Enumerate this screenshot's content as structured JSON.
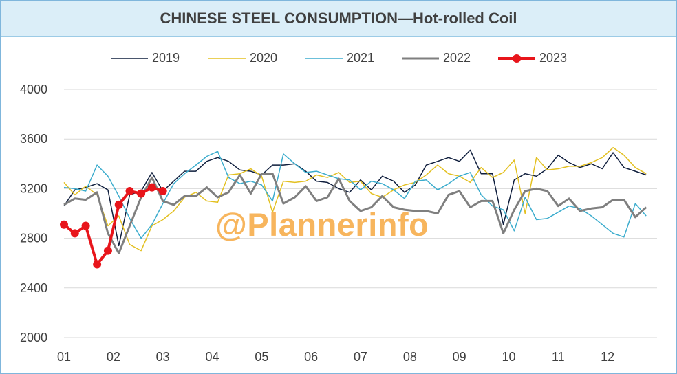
{
  "chart_data": {
    "type": "line",
    "title": "CHINESE STEEL CONSUMPTION—Hot-rolled Coil",
    "xlabel": "",
    "ylabel": "",
    "ylim": [
      2000,
      4000
    ],
    "y_ticks": [
      2000,
      2400,
      2800,
      3200,
      3600,
      4000
    ],
    "x_tick_labels": [
      "01",
      "02",
      "03",
      "04",
      "05",
      "06",
      "07",
      "08",
      "09",
      "10",
      "11",
      "12"
    ],
    "x_range": [
      1,
      13
    ],
    "grid": "horizontal",
    "legend_position": "top",
    "watermark": "@Plannerinfo",
    "series": [
      {
        "name": "2019",
        "color": "#0f1e3d",
        "x": [
          1.0,
          1.22,
          1.44,
          1.67,
          1.89,
          2.11,
          2.33,
          2.56,
          2.78,
          3.0,
          3.22,
          3.44,
          3.67,
          3.89,
          4.11,
          4.33,
          4.56,
          4.78,
          5.0,
          5.22,
          5.44,
          5.67,
          5.89,
          6.11,
          6.33,
          6.56,
          6.78,
          7.0,
          7.22,
          7.44,
          7.67,
          7.89,
          8.11,
          8.33,
          8.56,
          8.78,
          9.0,
          9.22,
          9.44,
          9.67,
          9.89,
          10.11,
          10.33,
          10.56,
          10.78,
          11.0,
          11.22,
          11.44,
          11.67,
          11.89,
          12.11,
          12.33,
          12.56,
          12.78
        ],
        "values": [
          3060,
          3190,
          3210,
          3240,
          3190,
          2740,
          3150,
          3180,
          3330,
          3180,
          3260,
          3340,
          3340,
          3420,
          3450,
          3420,
          3350,
          3340,
          3310,
          3390,
          3390,
          3400,
          3340,
          3260,
          3250,
          3200,
          3170,
          3270,
          3190,
          3300,
          3260,
          3170,
          3230,
          3390,
          3420,
          3450,
          3420,
          3510,
          3320,
          3320,
          2910,
          3270,
          3320,
          3300,
          3360,
          3470,
          3410,
          3370,
          3400,
          3360,
          3490,
          3370,
          3340,
          3310
        ]
      },
      {
        "name": "2020",
        "color": "#e3c021",
        "x": [
          1.0,
          1.22,
          1.44,
          1.67,
          1.89,
          2.11,
          2.33,
          2.56,
          2.78,
          3.0,
          3.22,
          3.44,
          3.67,
          3.89,
          4.11,
          4.33,
          4.56,
          4.78,
          5.0,
          5.22,
          5.44,
          5.67,
          5.89,
          6.11,
          6.33,
          6.56,
          6.78,
          7.0,
          7.22,
          7.44,
          7.67,
          7.89,
          8.11,
          8.33,
          8.56,
          8.78,
          9.0,
          9.22,
          9.44,
          9.67,
          9.89,
          10.11,
          10.33,
          10.56,
          10.78,
          11.0,
          11.22,
          11.44,
          11.67,
          11.89,
          12.11,
          12.33,
          12.56,
          12.78
        ],
        "values": [
          3250,
          3150,
          3220,
          3150,
          2900,
          2980,
          2750,
          2700,
          2900,
          2950,
          3020,
          3130,
          3170,
          3100,
          3090,
          3310,
          3320,
          3360,
          3300,
          3010,
          3260,
          3250,
          3260,
          3310,
          3290,
          3330,
          3250,
          3260,
          3160,
          3130,
          3190,
          3230,
          3250,
          3310,
          3390,
          3320,
          3300,
          3250,
          3370,
          3290,
          3330,
          3430,
          3000,
          3450,
          3350,
          3360,
          3380,
          3380,
          3410,
          3450,
          3530,
          3470,
          3370,
          3320
        ]
      },
      {
        "name": "2021",
        "color": "#3baccd",
        "x": [
          1.0,
          1.22,
          1.44,
          1.67,
          1.89,
          2.11,
          2.33,
          2.56,
          2.78,
          3.0,
          3.22,
          3.44,
          3.67,
          3.89,
          4.11,
          4.33,
          4.56,
          4.78,
          5.0,
          5.22,
          5.44,
          5.67,
          5.89,
          6.11,
          6.33,
          6.56,
          6.78,
          7.0,
          7.22,
          7.44,
          7.67,
          7.89,
          8.11,
          8.33,
          8.56,
          8.78,
          9.0,
          9.22,
          9.44,
          9.67,
          9.89,
          10.11,
          10.33,
          10.56,
          10.78,
          11.0,
          11.22,
          11.44,
          11.67,
          11.89,
          12.11,
          12.33,
          12.56,
          12.78
        ],
        "values": [
          3210,
          3200,
          3180,
          3390,
          3300,
          3140,
          2960,
          2800,
          2910,
          3080,
          3240,
          3320,
          3390,
          3460,
          3500,
          3290,
          3240,
          3260,
          3230,
          3100,
          3480,
          3400,
          3330,
          3340,
          3310,
          3280,
          3270,
          3190,
          3260,
          3240,
          3190,
          3120,
          3260,
          3270,
          3190,
          3240,
          3300,
          3330,
          3150,
          3060,
          3030,
          2860,
          3130,
          2950,
          2960,
          3010,
          3060,
          3040,
          2980,
          2910,
          2840,
          2810,
          3080,
          2980
        ]
      },
      {
        "name": "2022",
        "color": "#7f7f7f",
        "x": [
          1.0,
          1.22,
          1.44,
          1.67,
          1.89,
          2.11,
          2.33,
          2.56,
          2.78,
          3.0,
          3.22,
          3.44,
          3.67,
          3.89,
          4.11,
          4.33,
          4.56,
          4.78,
          5.0,
          5.22,
          5.44,
          5.67,
          5.89,
          6.11,
          6.33,
          6.56,
          6.78,
          7.0,
          7.22,
          7.44,
          7.67,
          7.89,
          8.11,
          8.33,
          8.56,
          8.78,
          9.0,
          9.22,
          9.44,
          9.67,
          9.89,
          10.11,
          10.33,
          10.56,
          10.78,
          11.0,
          11.22,
          11.44,
          11.67,
          11.89,
          12.11,
          12.33,
          12.56,
          12.78
        ],
        "values": [
          3070,
          3120,
          3110,
          3170,
          2840,
          2680,
          2900,
          3130,
          3290,
          3100,
          3070,
          3140,
          3140,
          3210,
          3130,
          3170,
          3310,
          3160,
          3320,
          3320,
          3080,
          3130,
          3220,
          3100,
          3130,
          3280,
          3100,
          3020,
          3050,
          3140,
          3050,
          3030,
          3020,
          3020,
          3000,
          3150,
          3180,
          3050,
          3100,
          3100,
          2840,
          3030,
          3180,
          3200,
          3180,
          3060,
          3120,
          3020,
          3040,
          3050,
          3110,
          3110,
          2970,
          3050
        ]
      },
      {
        "name": "2023",
        "color": "#e8151b",
        "x": [
          1.0,
          1.22,
          1.44,
          1.67,
          1.89,
          2.11,
          2.33,
          2.56,
          2.78,
          3.0
        ],
        "values": [
          2910,
          2840,
          2900,
          2590,
          2700,
          3070,
          3180,
          3160,
          3210,
          3180
        ]
      }
    ]
  }
}
